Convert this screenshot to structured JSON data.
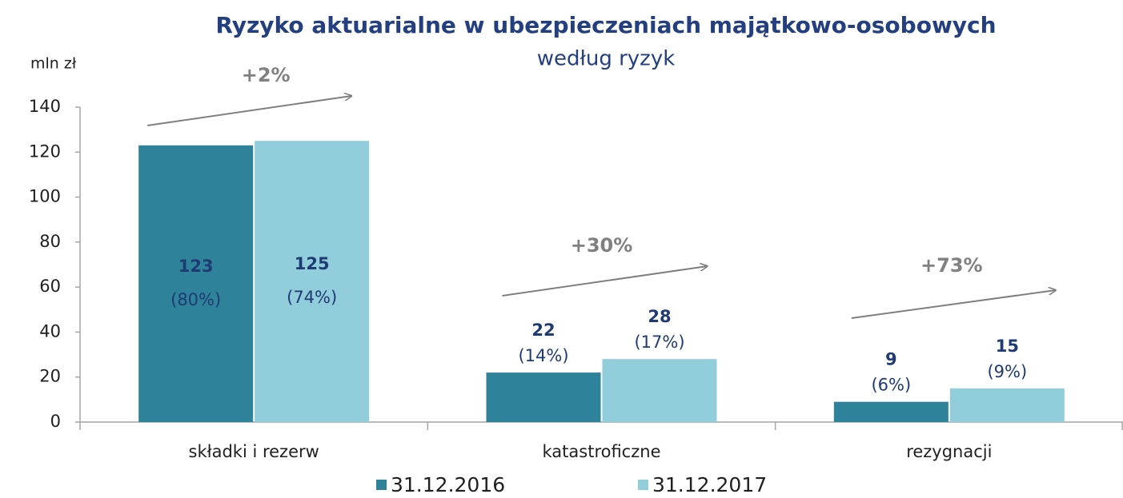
{
  "chart_data": {
    "type": "bar",
    "title": "Ryzyko aktuarialne w ubezpieczeniach majątkowo-osobowych",
    "subtitle": "według ryzyk",
    "y_label": "mln zł",
    "categories": [
      "składki i rezerw",
      "katastroficzne",
      "rezygnacji"
    ],
    "series": [
      {
        "name": "31.12.2016",
        "color": "#2e8299",
        "values": [
          123,
          22,
          9
        ],
        "share_labels": [
          "(80%)",
          "(14%)",
          "(6%)"
        ]
      },
      {
        "name": "31.12.2017",
        "color": "#92cddc",
        "values": [
          125,
          28,
          15
        ],
        "share_labels": [
          "(74%)",
          "(17%)",
          "(9%)"
        ]
      }
    ],
    "growth_labels": [
      "+2%",
      "+30%",
      "+73%"
    ],
    "ylim": [
      0,
      140
    ],
    "yticks": [
      0,
      20,
      40,
      60,
      80,
      100,
      120,
      140
    ],
    "legend": "bottom"
  }
}
